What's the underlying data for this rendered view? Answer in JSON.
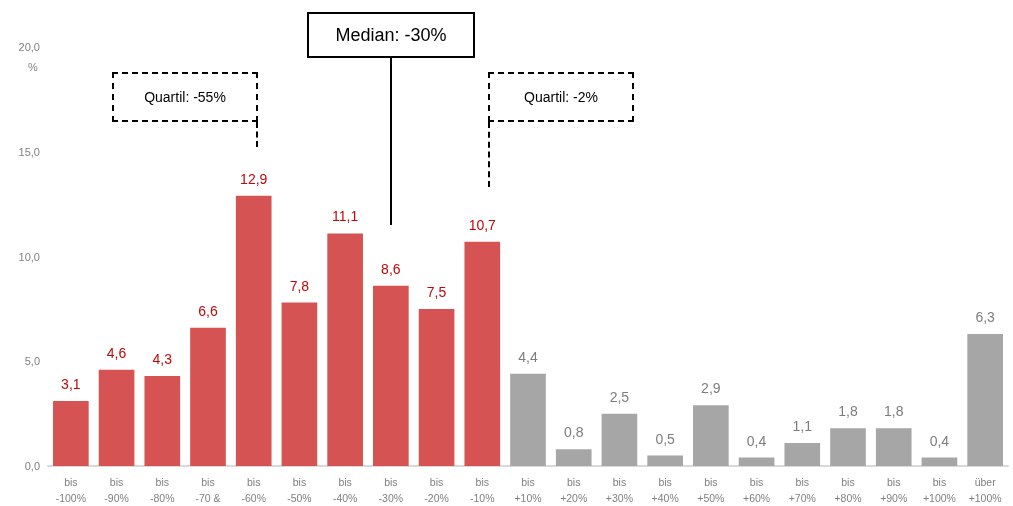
{
  "chart_data": {
    "type": "bar",
    "ylabel": "%",
    "categories": [
      "bis\n-100%",
      "bis\n-90%",
      "bis\n-80%",
      "bis\n-70 &",
      "bis\n-60%",
      "bis\n-50%",
      "bis\n-40%",
      "bis\n-30%",
      "bis\n-20%",
      "bis\n-10%",
      "bis\n+10%",
      "bis\n+20%",
      "bis\n+30%",
      "bis\n+40%",
      "bis\n+50%",
      "bis\n+60%",
      "bis\n+70%",
      "bis\n+80%",
      "bis\n+90%",
      "bis\n+100%",
      "über\n+100%"
    ],
    "values": [
      3.1,
      4.6,
      4.3,
      6.6,
      12.9,
      7.8,
      11.1,
      8.6,
      7.5,
      10.7,
      4.4,
      0.8,
      2.5,
      0.5,
      2.9,
      0.4,
      1.1,
      1.8,
      1.8,
      0.4,
      6.3
    ],
    "colors": [
      "#d55353",
      "#d55353",
      "#d55353",
      "#d55353",
      "#d55353",
      "#d55353",
      "#d55353",
      "#d55353",
      "#d55353",
      "#d55353",
      "#a6a6a6",
      "#a6a6a6",
      "#a6a6a6",
      "#a6a6a6",
      "#a6a6a6",
      "#a6a6a6",
      "#a6a6a6",
      "#a6a6a6",
      "#a6a6a6",
      "#a6a6a6",
      "#a6a6a6"
    ],
    "value_labels": [
      "3,1",
      "4,6",
      "4,3",
      "6,6",
      "12,9",
      "7,8",
      "11,1",
      "8,6",
      "7,5",
      "10,7",
      "4,4",
      "0,8",
      "2,5",
      "0,5",
      "2,9",
      "0,4",
      "1,1",
      "1,8",
      "1,8",
      "0,4",
      "6,3"
    ],
    "ylim": [
      0,
      20
    ],
    "yticks": [
      {
        "value": 0,
        "label": "0,0"
      },
      {
        "value": 5,
        "label": "5,0"
      },
      {
        "value": 10,
        "label": "10,0"
      },
      {
        "value": 15,
        "label": "15,0"
      },
      {
        "value": 20,
        "label": "20,0"
      }
    ],
    "grid": false,
    "annotations": [
      "Quartil:  -55%",
      "Median: -30%",
      "Quartil:  -2%"
    ]
  }
}
